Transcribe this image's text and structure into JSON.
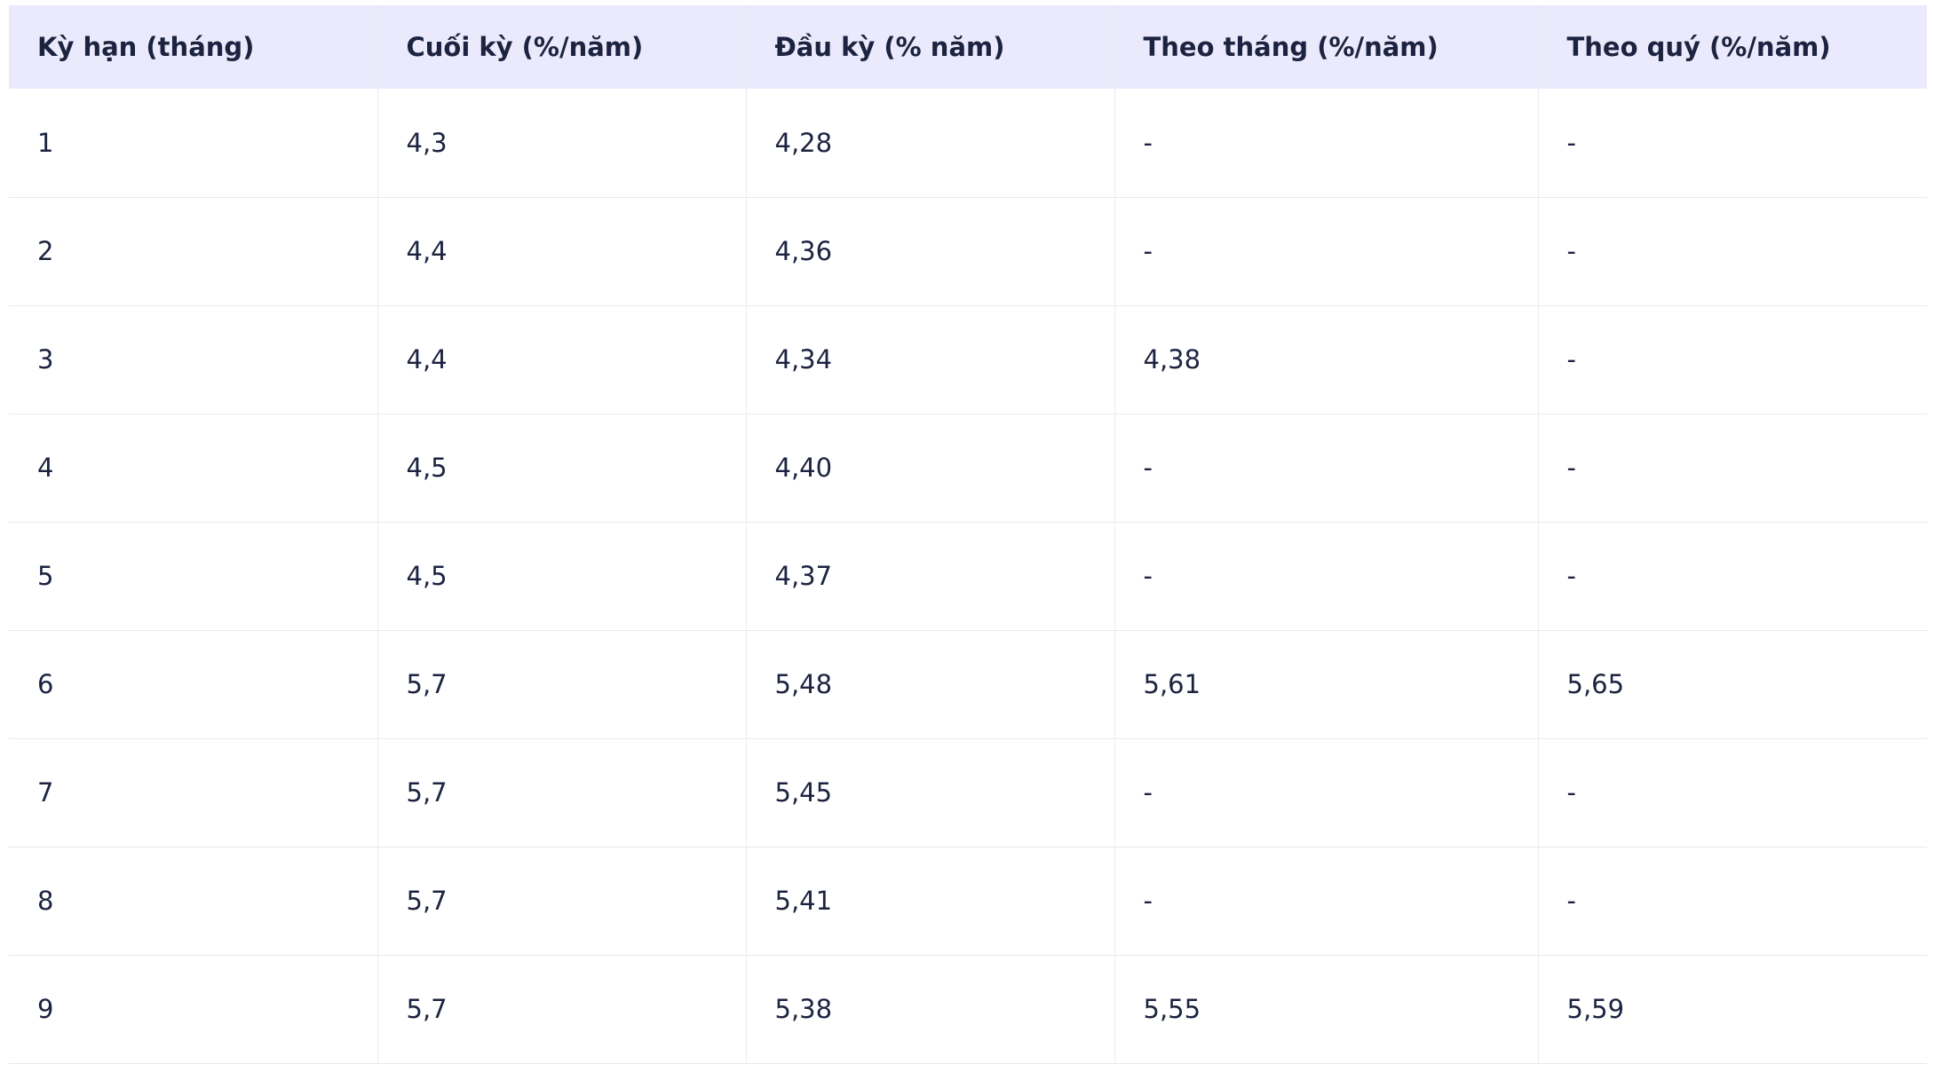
{
  "table": {
    "headers": [
      "Kỳ hạn (tháng)",
      "Cuối kỳ (%/năm)",
      "Đầu kỳ (% năm)",
      "Theo tháng (%/năm)",
      "Theo quý (%/năm)"
    ],
    "rows": [
      [
        "1",
        "4,3",
        "4,28",
        "-",
        "-"
      ],
      [
        "2",
        "4,4",
        "4,36",
        "-",
        "-"
      ],
      [
        "3",
        "4,4",
        "4,34",
        "4,38",
        "-"
      ],
      [
        "4",
        "4,5",
        "4,40",
        "-",
        "-"
      ],
      [
        "5",
        "4,5",
        "4,37",
        "-",
        "-"
      ],
      [
        "6",
        "5,7",
        "5,48",
        "5,61",
        "5,65"
      ],
      [
        "7",
        "5,7",
        "5,45",
        "-",
        "-"
      ],
      [
        "8",
        "5,7",
        "5,41",
        "-",
        "-"
      ],
      [
        "9",
        "5,7",
        "5,38",
        "5,55",
        "5,59"
      ]
    ]
  },
  "colors": {
    "header_background": "#ebeafc",
    "text": "#1c2340",
    "grid_line": "#e9e9ef"
  }
}
